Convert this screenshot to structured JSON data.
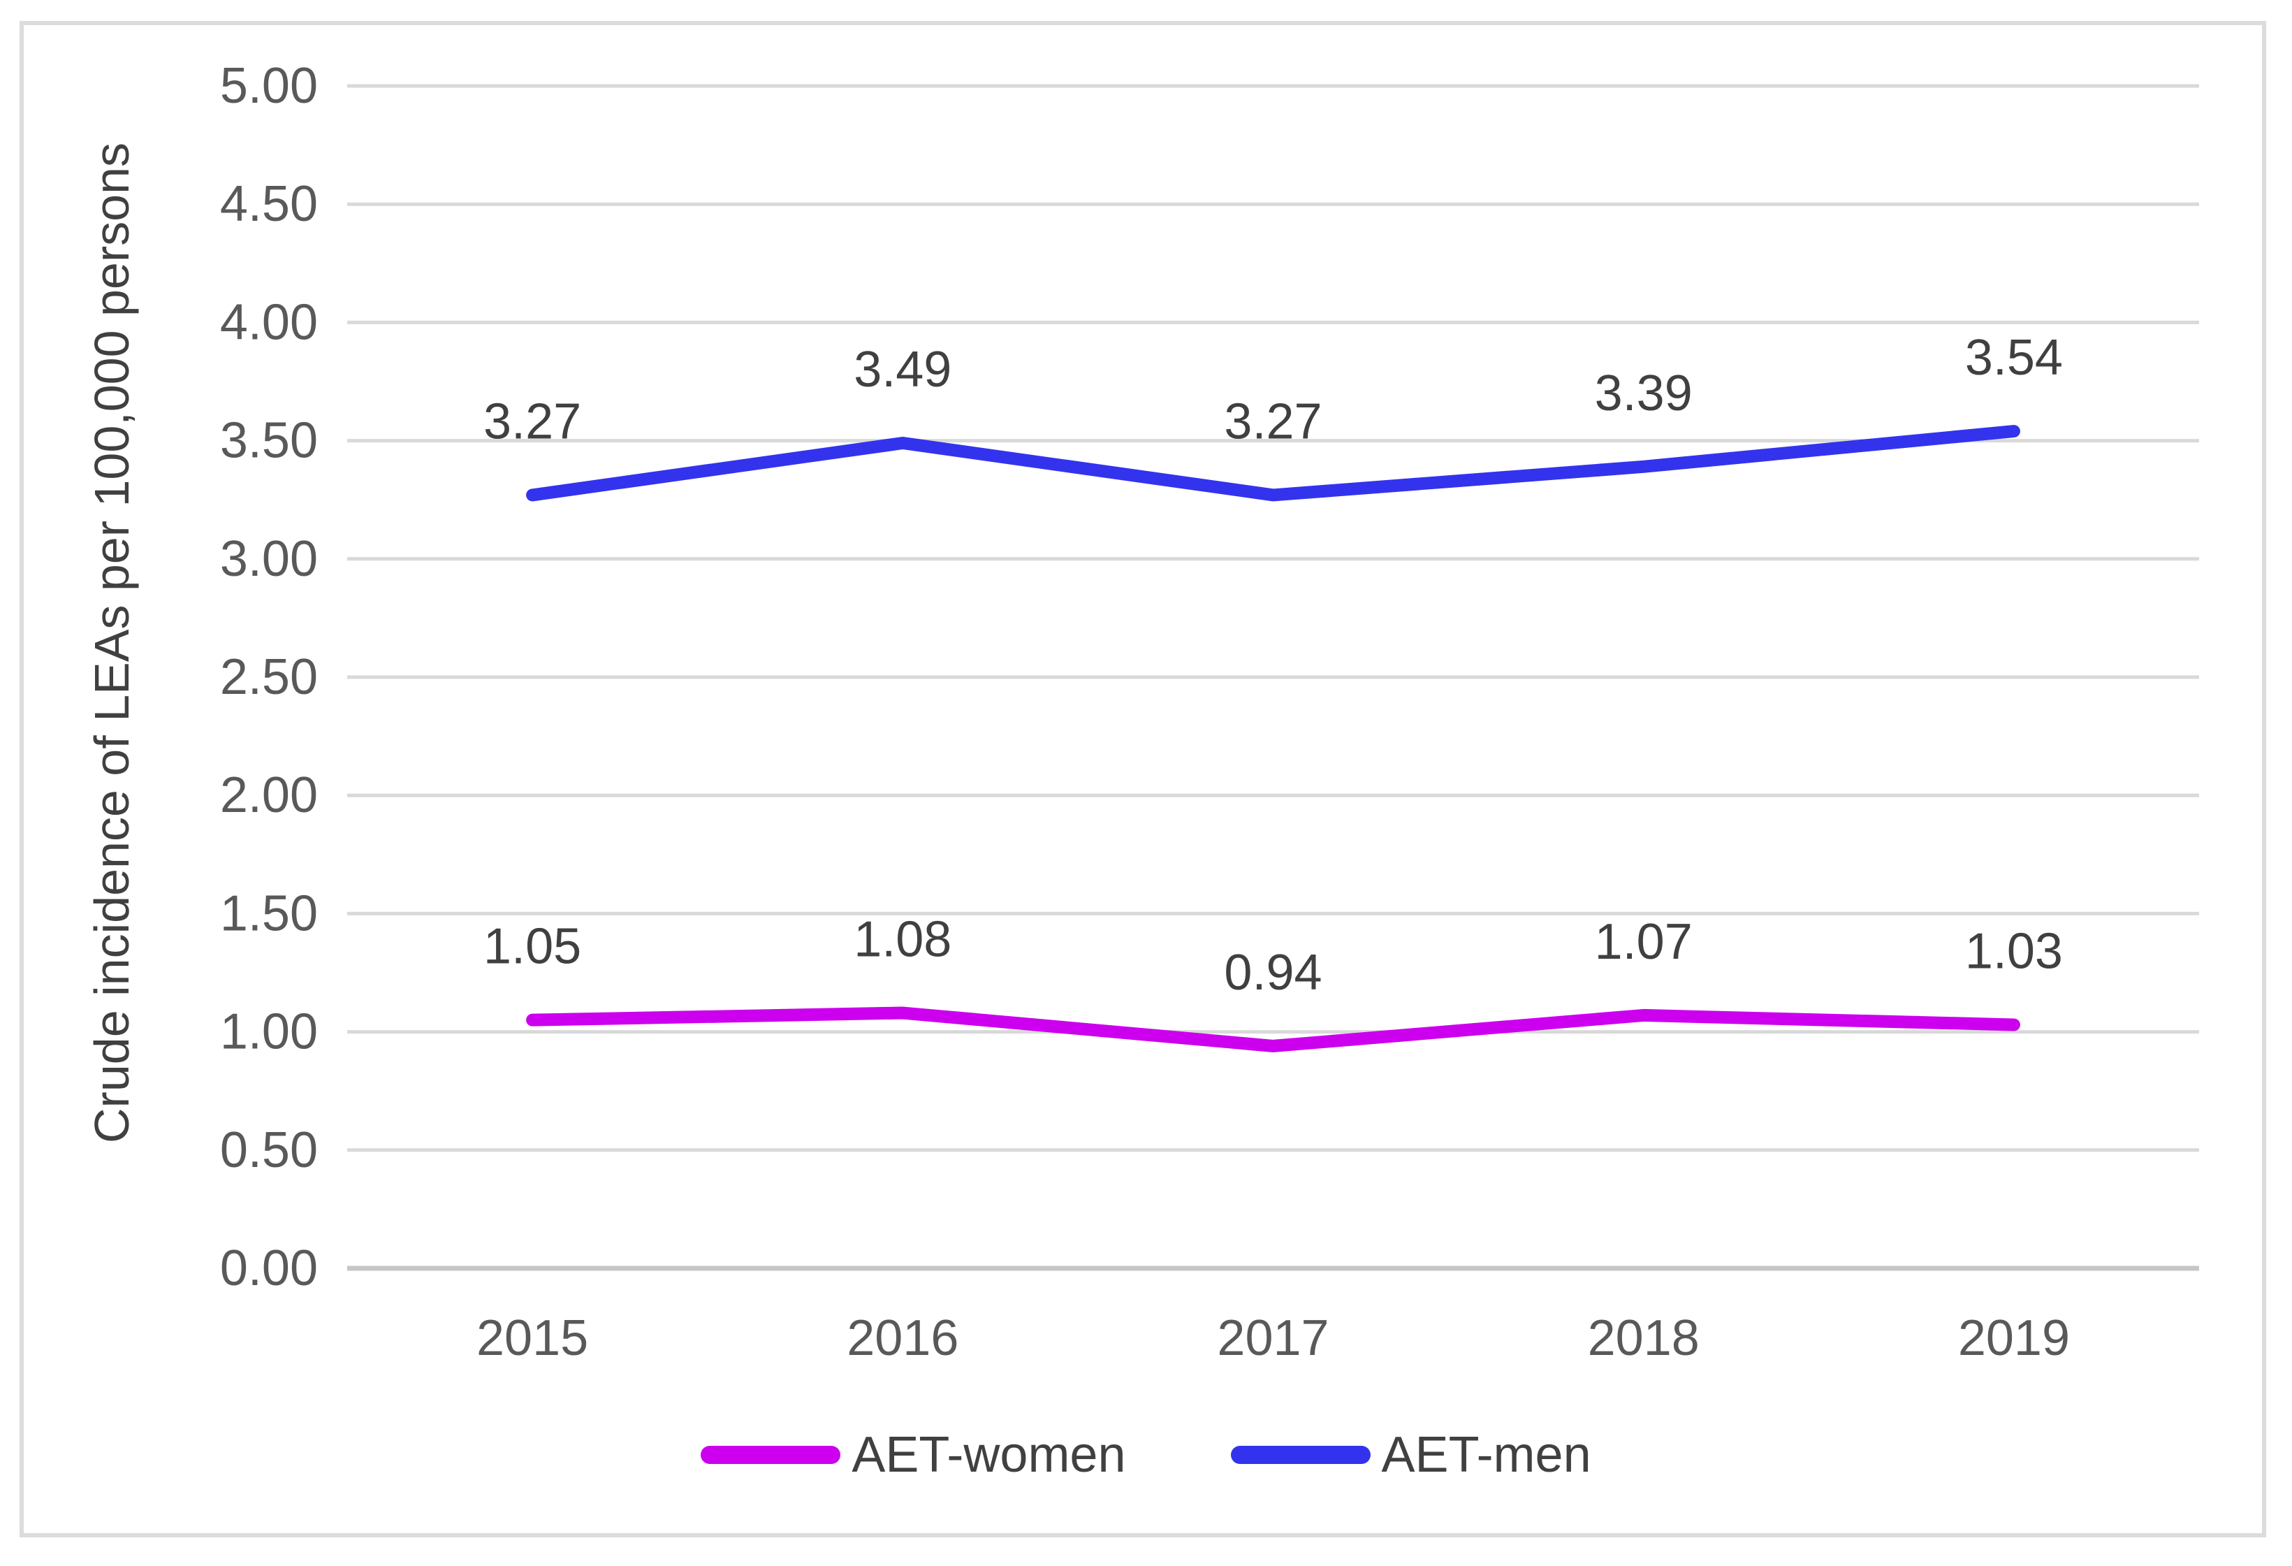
{
  "chart_data": {
    "type": "line",
    "title": "",
    "categories": [
      "2015",
      "2016",
      "2017",
      "2018",
      "2019"
    ],
    "series": [
      {
        "name": "AET-women",
        "color": "#CC00EE",
        "values": [
          1.05,
          1.08,
          0.94,
          1.07,
          1.03
        ],
        "labels": [
          "1.05",
          "1.08",
          "0.94",
          "1.07",
          "1.03"
        ]
      },
      {
        "name": "AET-men",
        "color": "#3333EE",
        "values": [
          3.27,
          3.49,
          3.27,
          3.39,
          3.54
        ],
        "labels": [
          "3.27",
          "3.49",
          "3.27",
          "3.39",
          "3.54"
        ]
      }
    ],
    "xlabel": "",
    "ylabel": "Crude incidence of LEAs per 100,000 persons",
    "ylim": [
      0,
      5
    ],
    "ytick_step": 0.5,
    "yticks": [
      "0.00",
      "0.50",
      "1.00",
      "1.50",
      "2.00",
      "2.50",
      "3.00",
      "3.50",
      "4.00",
      "4.50",
      "5.00"
    ],
    "grid": true,
    "legend_position": "bottom",
    "colors": {
      "gridline": "#D9D9D9",
      "axis_line": "#C6C6C6",
      "tick_text": "#595959",
      "data_label_text": "#404040",
      "frame_border": "#DCDCDC",
      "background": "#FFFFFF"
    }
  }
}
